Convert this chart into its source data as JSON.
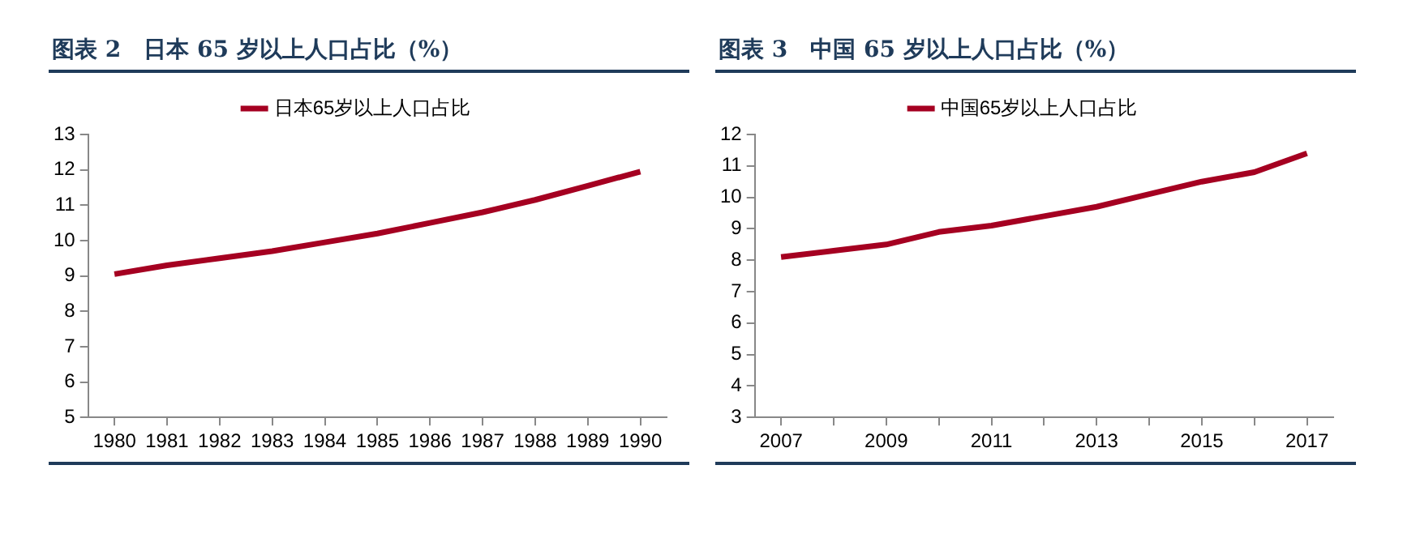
{
  "chart_data": [
    {
      "type": "line",
      "title": "图表 2　日本 65 岁以上人口占比（%）",
      "categories": [
        "1980",
        "1981",
        "1982",
        "1983",
        "1984",
        "1985",
        "1986",
        "1987",
        "1988",
        "1989",
        "1990"
      ],
      "series": [
        {
          "name": "日本65岁以上人口占比",
          "color": "#a50021",
          "values": [
            9.05,
            9.3,
            9.5,
            9.7,
            9.95,
            10.2,
            10.5,
            10.8,
            11.15,
            11.55,
            11.95
          ]
        }
      ],
      "ylim": [
        5,
        13
      ],
      "yticks": [
        5,
        6,
        7,
        8,
        9,
        10,
        11,
        12,
        13
      ],
      "legend": "top",
      "grid": false
    },
    {
      "type": "line",
      "title": "图表 3　中国 65 岁以上人口占比（%）",
      "categories": [
        "2007",
        null,
        "2009",
        null,
        "2011",
        null,
        "2013",
        null,
        "2015",
        null,
        "2017"
      ],
      "series": [
        {
          "name": "中国65岁以上人口占比",
          "color": "#a50021",
          "values": [
            8.1,
            8.3,
            8.5,
            8.9,
            9.1,
            9.4,
            9.7,
            10.1,
            10.5,
            10.8,
            11.4
          ]
        }
      ],
      "ylim": [
        3,
        12
      ],
      "yticks": [
        3,
        4,
        5,
        6,
        7,
        8,
        9,
        10,
        11,
        12
      ],
      "legend": "top",
      "grid": false
    }
  ]
}
